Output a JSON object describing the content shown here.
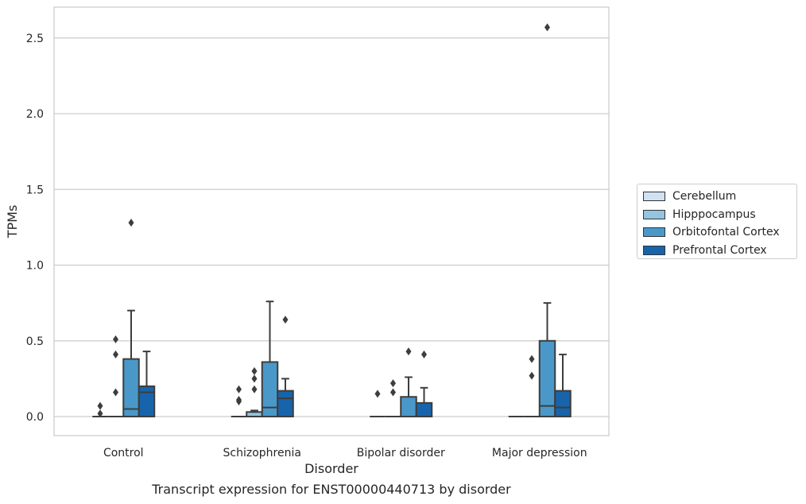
{
  "caption": "Transcript expression for ENST00000440713 by disorder",
  "chart_data": {
    "type": "box",
    "xlabel": "Disorder",
    "ylabel": "TPMs",
    "ylim": [
      -0.12,
      2.7
    ],
    "yticks": [
      0.0,
      0.5,
      1.0,
      1.5,
      2.0,
      2.5
    ],
    "ytick_labels": [
      "0.0",
      "0.5",
      "1.0",
      "1.5",
      "2.0",
      "2.5"
    ],
    "grid": "horizontal",
    "legend_position": "right",
    "categories": [
      "Control",
      "Schizophrenia",
      "Bipolar disorder",
      "Major depression"
    ],
    "series": [
      {
        "name": "Cerebellum",
        "color": "#d0e1f2",
        "boxes": [
          {
            "q1": 0,
            "median": 0,
            "q3": 0,
            "whisker_low": 0,
            "whisker_high": 0,
            "outliers": [
              0.07,
              0.02
            ]
          },
          {
            "q1": 0,
            "median": 0,
            "q3": 0,
            "whisker_low": 0,
            "whisker_high": 0,
            "outliers": [
              0.18,
              0.11,
              0.1
            ]
          },
          {
            "q1": 0,
            "median": 0,
            "q3": 0,
            "whisker_low": 0,
            "whisker_high": 0,
            "outliers": [
              0.15
            ]
          },
          {
            "q1": 0,
            "median": 0,
            "q3": 0,
            "whisker_low": 0,
            "whisker_high": 0,
            "outliers": []
          }
        ]
      },
      {
        "name": "Hipppocampus",
        "color": "#94c4df",
        "boxes": [
          {
            "q1": 0,
            "median": 0,
            "q3": 0,
            "whisker_low": 0,
            "whisker_high": 0,
            "outliers": [
              0.51,
              0.41,
              0.16
            ]
          },
          {
            "q1": 0,
            "median": 0,
            "q3": 0.03,
            "whisker_low": 0,
            "whisker_high": 0.04,
            "outliers": [
              0.3,
              0.25,
              0.18
            ]
          },
          {
            "q1": 0,
            "median": 0,
            "q3": 0,
            "whisker_low": 0,
            "whisker_high": 0,
            "outliers": [
              0.22,
              0.16
            ]
          },
          {
            "q1": 0,
            "median": 0,
            "q3": 0,
            "whisker_low": 0,
            "whisker_high": 0,
            "outliers": [
              0.38,
              0.27
            ]
          }
        ]
      },
      {
        "name": "Orbitofontal Cortex",
        "color": "#4a98c9",
        "boxes": [
          {
            "q1": 0,
            "median": 0.05,
            "q3": 0.38,
            "whisker_low": 0,
            "whisker_high": 0.7,
            "outliers": [
              1.28
            ]
          },
          {
            "q1": 0,
            "median": 0.06,
            "q3": 0.36,
            "whisker_low": 0,
            "whisker_high": 0.76,
            "outliers": []
          },
          {
            "q1": 0,
            "median": 0,
            "q3": 0.13,
            "whisker_low": 0,
            "whisker_high": 0.26,
            "outliers": [
              0.43
            ]
          },
          {
            "q1": 0,
            "median": 0.07,
            "q3": 0.5,
            "whisker_low": 0,
            "whisker_high": 0.75,
            "outliers": [
              2.57
            ]
          }
        ]
      },
      {
        "name": "Prefrontal Cortex",
        "color": "#1764ab",
        "boxes": [
          {
            "q1": 0,
            "median": 0.16,
            "q3": 0.2,
            "whisker_low": 0,
            "whisker_high": 0.43,
            "outliers": []
          },
          {
            "q1": 0,
            "median": 0.12,
            "q3": 0.17,
            "whisker_low": 0,
            "whisker_high": 0.25,
            "outliers": [
              0.64
            ]
          },
          {
            "q1": 0,
            "median": 0,
            "q3": 0.09,
            "whisker_low": 0,
            "whisker_high": 0.19,
            "outliers": [
              0.41
            ]
          },
          {
            "q1": 0,
            "median": 0.06,
            "q3": 0.17,
            "whisker_low": 0,
            "whisker_high": 0.41,
            "outliers": []
          }
        ]
      }
    ]
  }
}
